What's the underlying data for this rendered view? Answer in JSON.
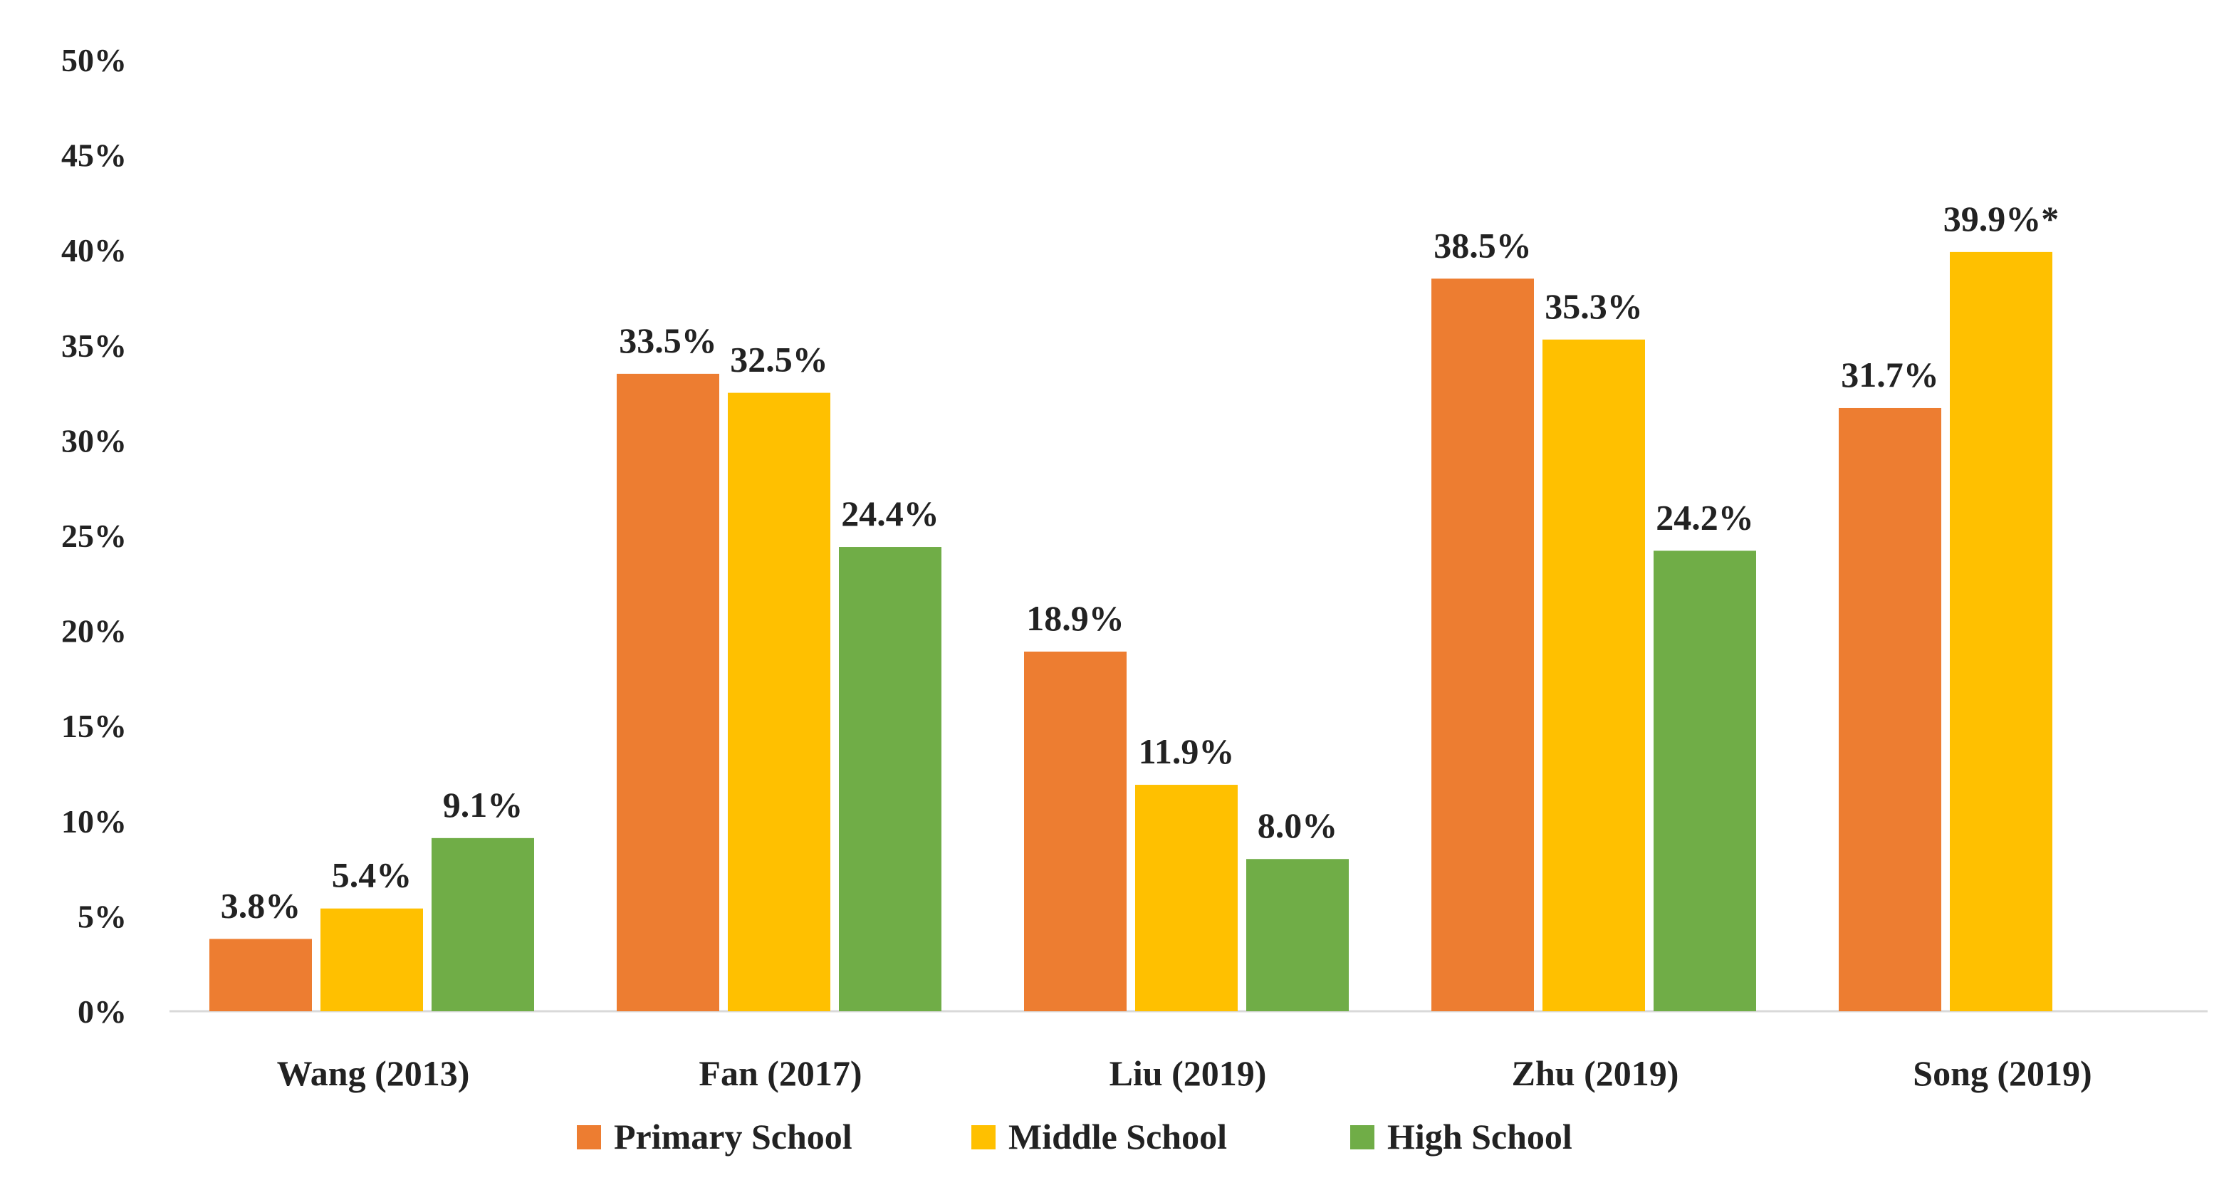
{
  "chart_data": {
    "type": "bar",
    "title": "",
    "xlabel": "",
    "ylabel": "",
    "ylim": [
      0,
      50
    ],
    "y_ticks": [
      "0%",
      "5%",
      "10%",
      "15%",
      "20%",
      "25%",
      "30%",
      "35%",
      "40%",
      "45%",
      "50%"
    ],
    "grid": false,
    "legend_position": "bottom",
    "categories": [
      "Wang (2013)",
      "Fan (2017)",
      "Liu (2019)",
      "Zhu (2019)",
      "Song (2019)"
    ],
    "series": [
      {
        "name": "Primary School",
        "color": "#ED7D31",
        "values": [
          3.8,
          33.5,
          18.9,
          38.5,
          31.7
        ],
        "labels": [
          "3.8%",
          "33.5%",
          "18.9%",
          "38.5%",
          "31.7%"
        ]
      },
      {
        "name": "Middle School",
        "color": "#FFC000",
        "values": [
          5.4,
          32.5,
          11.9,
          35.3,
          39.9
        ],
        "labels": [
          "5.4%",
          "32.5%",
          "11.9%",
          "35.3%",
          "39.9%*"
        ]
      },
      {
        "name": "High School",
        "color": "#70AD47",
        "values": [
          9.1,
          24.4,
          8.0,
          24.2,
          null
        ],
        "labels": [
          "9.1%",
          "24.4%",
          "8.0%",
          "24.2%",
          null
        ]
      }
    ]
  }
}
